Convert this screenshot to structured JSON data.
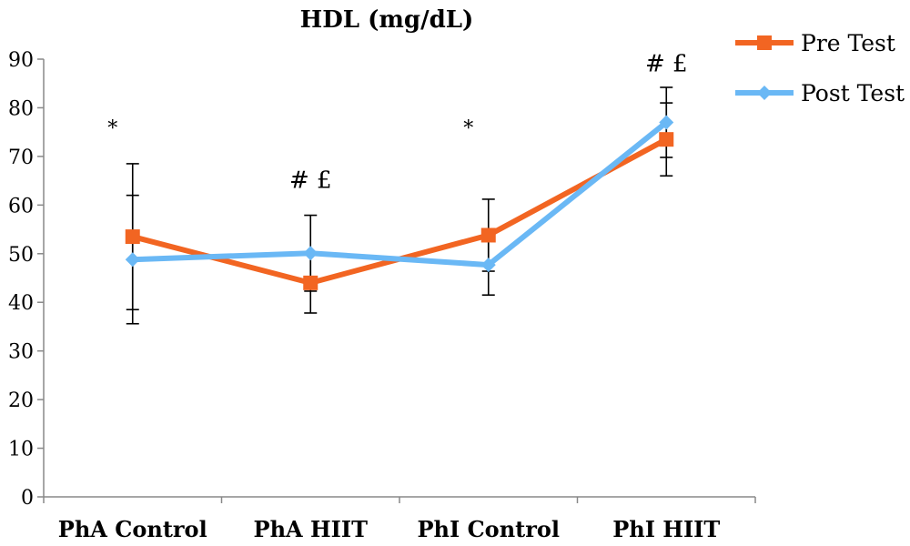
{
  "chart_data": {
    "type": "line",
    "title": "HDL (mg/dL)",
    "xlabel": "",
    "ylabel": "",
    "ylim": [
      0,
      90
    ],
    "yticks": [
      0,
      10,
      20,
      30,
      40,
      50,
      60,
      70,
      80,
      90
    ],
    "categories": [
      "PhA Control",
      "PhA HIIT",
      "PhI Control",
      "PhI HIIT"
    ],
    "series": [
      {
        "name": "Pre Test",
        "color": "#f26522",
        "marker": "square",
        "values": [
          53.5,
          44.0,
          53.8,
          73.5
        ],
        "error": [
          15.0,
          6.2,
          7.4,
          7.5
        ]
      },
      {
        "name": "Post Test",
        "color": "#6ab8f5",
        "marker": "diamond",
        "values": [
          48.8,
          50.1,
          47.7,
          77.0
        ],
        "error": [
          13.2,
          7.8,
          6.2,
          7.2
        ]
      }
    ],
    "annotations": [
      {
        "text": "*",
        "category": 0,
        "y": 76
      },
      {
        "text": "# £",
        "category": 1,
        "y": 65
      },
      {
        "text": "*",
        "category": 2,
        "y": 76
      },
      {
        "text": "# £",
        "category": 3,
        "y": 89
      }
    ],
    "legend": "top-right",
    "grid": false
  }
}
